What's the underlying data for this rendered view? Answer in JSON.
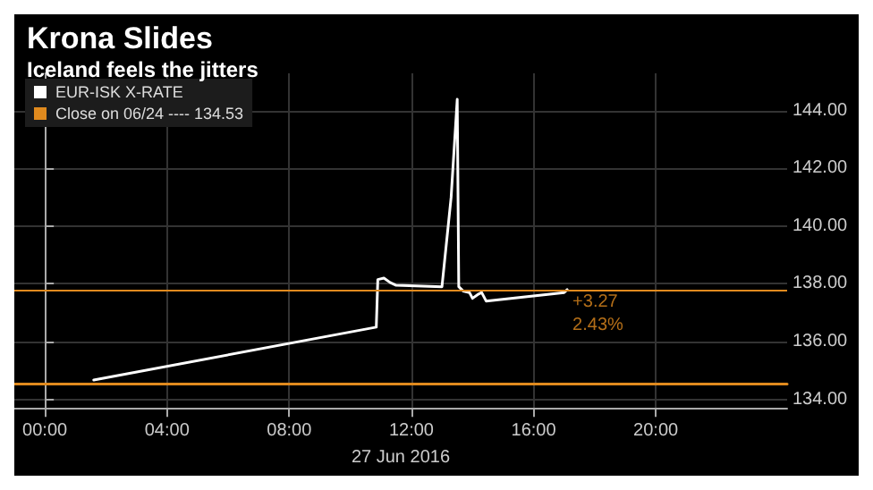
{
  "chart_data": {
    "type": "line",
    "title": "Krona Slides",
    "subtitle": "Iceland feels the jitters",
    "xlabel": "27 Jun 2016",
    "xlim": [
      -1,
      24.3
    ],
    "ylim": [
      133.7,
      145.3
    ],
    "xticks": [
      {
        "value": 0,
        "label": "00:00"
      },
      {
        "value": 4,
        "label": "04:00"
      },
      {
        "value": 8,
        "label": "08:00"
      },
      {
        "value": 12,
        "label": "12:00"
      },
      {
        "value": 16,
        "label": "16:00"
      },
      {
        "value": 20,
        "label": "20:00"
      }
    ],
    "yticks": [
      {
        "value": 134,
        "label": "134.00"
      },
      {
        "value": 136,
        "label": "136.00"
      },
      {
        "value": 138,
        "label": "138.00"
      },
      {
        "value": 140,
        "label": "140.00"
      },
      {
        "value": 142,
        "label": "142.00"
      },
      {
        "value": 144,
        "label": "144.00"
      }
    ],
    "series": [
      {
        "name": "EUR-ISK X-RATE",
        "color": "#ffffff",
        "x": [
          1.6,
          10.85,
          10.9,
          11.1,
          11.3,
          11.5,
          13.0,
          13.3,
          13.5,
          13.55,
          13.7,
          13.9,
          14.0,
          14.2,
          14.3,
          14.45,
          17.0,
          17.1
        ],
        "values": [
          134.67,
          136.5,
          138.15,
          138.2,
          138.05,
          137.95,
          137.9,
          141.0,
          144.4,
          137.9,
          137.75,
          137.7,
          137.5,
          137.65,
          137.7,
          137.4,
          137.7,
          137.8
        ]
      },
      {
        "name": "Close on 06/24 ---- 134.53",
        "color": "#e08a1e",
        "x": [
          -1,
          24.3
        ],
        "values": [
          134.53,
          134.53
        ]
      }
    ],
    "ref_lines": [
      {
        "axis": "y",
        "value": 137.8,
        "color": "#e08a1e"
      }
    ],
    "annotations": [
      {
        "text": "+3.27",
        "x": 17.1,
        "y": 137.8
      },
      {
        "text": "2.43%",
        "x": 17.1,
        "y": 137.8
      }
    ],
    "grid": true,
    "legend": "top left",
    "marker": "none",
    "line_style": "solid"
  }
}
